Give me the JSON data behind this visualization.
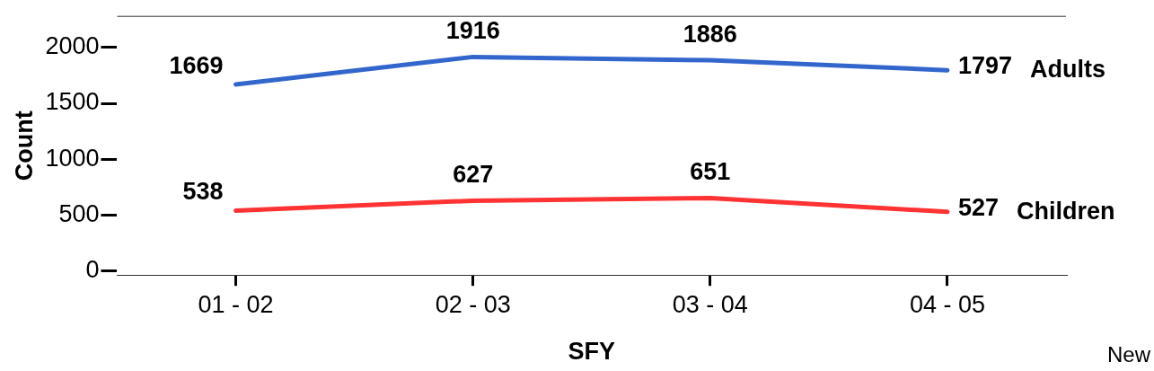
{
  "chart_data": {
    "type": "line",
    "xlabel": "SFY",
    "ylabel": "Count",
    "categories": [
      "01 - 02",
      "02 - 03",
      "03 - 04",
      "04 - 05"
    ],
    "series": [
      {
        "name": "Adults",
        "color": "#3366cc",
        "values": [
          1669,
          1916,
          1886,
          1797
        ]
      },
      {
        "name": "Children",
        "color": "#ff3333",
        "values": [
          538,
          627,
          651,
          527
        ]
      }
    ],
    "ylim": [
      -40,
      2280
    ],
    "yticks": [
      0,
      500,
      1000,
      1500,
      2000
    ],
    "grid": false,
    "legend": false,
    "marker": "none",
    "line_style": "solid",
    "data_labels": true,
    "annotations": [
      "New"
    ]
  }
}
